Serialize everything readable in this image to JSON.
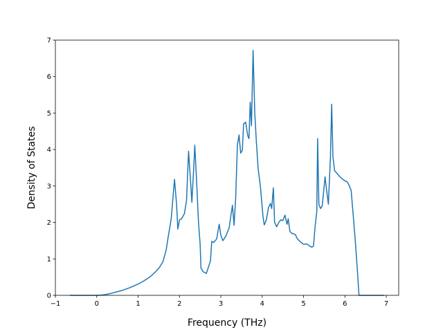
{
  "chart_data": {
    "type": "line",
    "xlabel": "Frequency (THz)",
    "ylabel": "Density of States",
    "xlim": [
      -1,
      7.3
    ],
    "ylim": [
      0,
      7
    ],
    "xticks": [
      "−1",
      "0",
      "1",
      "2",
      "3",
      "4",
      "5",
      "6",
      "7"
    ],
    "yticks": [
      "0",
      "1",
      "2",
      "3",
      "4",
      "5",
      "6",
      "7"
    ],
    "grid": false,
    "series": [
      {
        "color": "#1f77b4",
        "points": [
          [
            -0.65,
            0
          ],
          [
            0.0,
            0
          ],
          [
            0.1,
            0.005
          ],
          [
            0.2,
            0.02
          ],
          [
            0.3,
            0.04
          ],
          [
            0.4,
            0.07
          ],
          [
            0.5,
            0.1
          ],
          [
            0.6,
            0.13
          ],
          [
            0.7,
            0.17
          ],
          [
            0.8,
            0.21
          ],
          [
            0.9,
            0.26
          ],
          [
            1.0,
            0.31
          ],
          [
            1.1,
            0.37
          ],
          [
            1.2,
            0.44
          ],
          [
            1.3,
            0.52
          ],
          [
            1.4,
            0.62
          ],
          [
            1.5,
            0.74
          ],
          [
            1.6,
            0.92
          ],
          [
            1.68,
            1.25
          ],
          [
            1.72,
            1.55
          ],
          [
            1.8,
            2.1
          ],
          [
            1.88,
            3.18
          ],
          [
            1.93,
            2.5
          ],
          [
            1.96,
            1.82
          ],
          [
            2.0,
            2.07
          ],
          [
            2.05,
            2.1
          ],
          [
            2.12,
            2.24
          ],
          [
            2.17,
            2.6
          ],
          [
            2.22,
            3.95
          ],
          [
            2.27,
            3.1
          ],
          [
            2.3,
            2.55
          ],
          [
            2.35,
            3.6
          ],
          [
            2.37,
            4.12
          ],
          [
            2.42,
            3.0
          ],
          [
            2.46,
            2.0
          ],
          [
            2.5,
            1.4
          ],
          [
            2.52,
            0.75
          ],
          [
            2.57,
            0.65
          ],
          [
            2.65,
            0.6
          ],
          [
            2.75,
            0.95
          ],
          [
            2.78,
            1.48
          ],
          [
            2.83,
            1.45
          ],
          [
            2.9,
            1.55
          ],
          [
            2.96,
            1.95
          ],
          [
            3.0,
            1.65
          ],
          [
            3.05,
            1.5
          ],
          [
            3.12,
            1.62
          ],
          [
            3.2,
            1.85
          ],
          [
            3.28,
            2.47
          ],
          [
            3.32,
            1.92
          ],
          [
            3.36,
            2.7
          ],
          [
            3.4,
            4.12
          ],
          [
            3.44,
            4.4
          ],
          [
            3.48,
            3.9
          ],
          [
            3.52,
            3.98
          ],
          [
            3.55,
            4.7
          ],
          [
            3.6,
            4.75
          ],
          [
            3.65,
            4.38
          ],
          [
            3.68,
            4.3
          ],
          [
            3.71,
            5.3
          ],
          [
            3.74,
            4.65
          ],
          [
            3.78,
            6.72
          ],
          [
            3.82,
            5.0
          ],
          [
            3.86,
            4.2
          ],
          [
            3.9,
            3.5
          ],
          [
            3.96,
            2.95
          ],
          [
            4.02,
            2.15
          ],
          [
            4.05,
            1.93
          ],
          [
            4.1,
            2.07
          ],
          [
            4.15,
            2.4
          ],
          [
            4.2,
            2.52
          ],
          [
            4.23,
            2.38
          ],
          [
            4.27,
            2.95
          ],
          [
            4.3,
            2.0
          ],
          [
            4.35,
            1.88
          ],
          [
            4.4,
            2.0
          ],
          [
            4.45,
            2.07
          ],
          [
            4.5,
            2.05
          ],
          [
            4.55,
            2.2
          ],
          [
            4.6,
            1.95
          ],
          [
            4.63,
            2.1
          ],
          [
            4.67,
            1.75
          ],
          [
            4.72,
            1.7
          ],
          [
            4.8,
            1.67
          ],
          [
            4.85,
            1.55
          ],
          [
            4.92,
            1.47
          ],
          [
            5.0,
            1.4
          ],
          [
            5.08,
            1.41
          ],
          [
            5.15,
            1.35
          ],
          [
            5.2,
            1.32
          ],
          [
            5.24,
            1.35
          ],
          [
            5.28,
            1.9
          ],
          [
            5.32,
            2.3
          ],
          [
            5.34,
            4.3
          ],
          [
            5.37,
            2.5
          ],
          [
            5.41,
            2.38
          ],
          [
            5.45,
            2.45
          ],
          [
            5.52,
            3.25
          ],
          [
            5.56,
            2.85
          ],
          [
            5.6,
            2.5
          ],
          [
            5.65,
            3.8
          ],
          [
            5.68,
            5.24
          ],
          [
            5.71,
            3.8
          ],
          [
            5.75,
            3.42
          ],
          [
            5.82,
            3.33
          ],
          [
            5.88,
            3.25
          ],
          [
            5.95,
            3.18
          ],
          [
            6.0,
            3.14
          ],
          [
            6.05,
            3.12
          ],
          [
            6.1,
            3.02
          ],
          [
            6.15,
            2.88
          ],
          [
            6.2,
            2.2
          ],
          [
            6.25,
            1.5
          ],
          [
            6.3,
            0.7
          ],
          [
            6.34,
            0
          ],
          [
            6.95,
            0
          ]
        ]
      }
    ]
  }
}
